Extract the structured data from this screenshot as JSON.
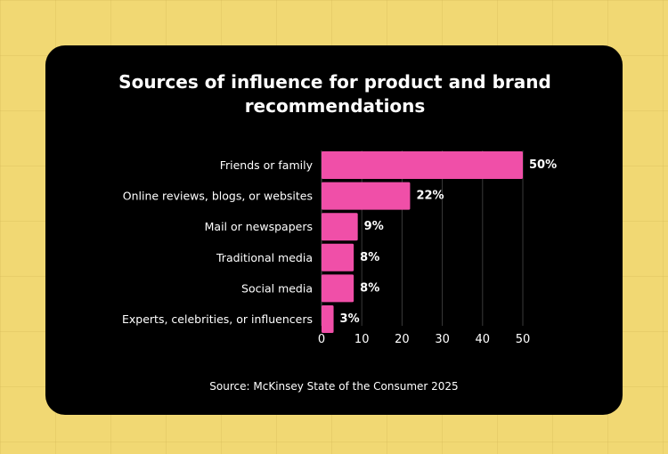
{
  "chart_data": {
    "type": "bar",
    "orientation": "horizontal",
    "title": "Sources of influence for product and brand recommendations",
    "source": "Source: McKinsey State of the Consumer 2025",
    "categories": [
      "Friends or family",
      "Online reviews, blogs, or websites",
      "Mail or newspapers",
      "Traditional media",
      "Social media",
      "Experts, celebrities, or influencers"
    ],
    "values": [
      50,
      22,
      9,
      8,
      8,
      3
    ],
    "value_labels": [
      "50%",
      "22%",
      "9%",
      "8%",
      "8%",
      "3%"
    ],
    "xticks": [
      0,
      10,
      20,
      30,
      40,
      50
    ],
    "xlim": [
      0,
      50
    ],
    "grid": true,
    "legend": "none",
    "colors": {
      "bar": "#f04fa8",
      "background": "#000000",
      "page": "#f1d873",
      "text": "#ffffff",
      "grid": "#3a3a3a"
    }
  }
}
